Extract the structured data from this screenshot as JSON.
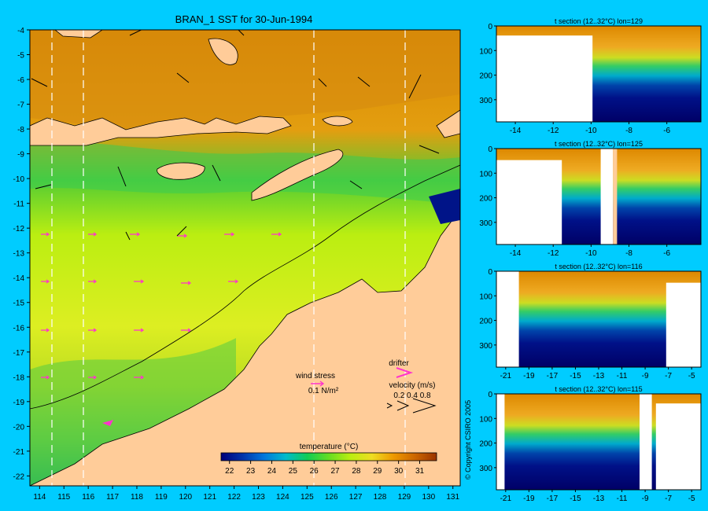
{
  "main_map": {
    "title": "BRAN_1 SST for 30-Jun-1994",
    "x_ticks": [
      "114",
      "115",
      "116",
      "117",
      "118",
      "119",
      "120",
      "121",
      "122",
      "123",
      "124",
      "125",
      "126",
      "127",
      "128",
      "129",
      "130",
      "131"
    ],
    "y_ticks": [
      "-4",
      "-5",
      "-6",
      "-7",
      "-8",
      "-9",
      "-10",
      "-11",
      "-12",
      "-13",
      "-14",
      "-15",
      "-16",
      "-17",
      "-18",
      "-19",
      "-20",
      "-21",
      "-22"
    ],
    "wind_label": "wind stress",
    "wind_value": "0.1 N/m²",
    "drifter_label": "drifter",
    "velocity_label": "velocity (m/s)",
    "velocity_values": "0.2 0.4 0.8",
    "colorbar": {
      "title": "temperature (°C)",
      "ticks": [
        "22",
        "23",
        "24",
        "25",
        "26",
        "27",
        "28",
        "29",
        "30",
        "31"
      ],
      "colors": [
        "#00007A",
        "#0033AA",
        "#0077DD",
        "#00BBCC",
        "#11CC55",
        "#66DD22",
        "#BBEE11",
        "#EEDD22",
        "#EE9900",
        "#CC6600",
        "#993300"
      ]
    },
    "colors": {
      "land": "#FFCC99",
      "background": "#00CCFF",
      "drifter": "#FF33CC"
    }
  },
  "copyright": "© Copyright CSIRO 2005",
  "sections": [
    {
      "title": "t section (12..32°C) lon=129",
      "x_ticks": [
        "-14",
        "-12",
        "-10",
        "-8",
        "-6"
      ],
      "y_ticks": [
        "0",
        "100",
        "200",
        "300"
      ]
    },
    {
      "title": "t section (12..32°C) lon=125",
      "x_ticks": [
        "-14",
        "-12",
        "-10",
        "-8",
        "-6"
      ],
      "y_ticks": [
        "0",
        "100",
        "200",
        "300"
      ]
    },
    {
      "title": "t section (12..32°C) lon=116",
      "x_ticks": [
        "-21",
        "-19",
        "-17",
        "-15",
        "-13",
        "-11",
        "-9",
        "-7",
        "-5"
      ],
      "y_ticks": [
        "0",
        "100",
        "200",
        "300"
      ]
    },
    {
      "title": "t section (12..32°C) lon=115",
      "x_ticks": [
        "-21",
        "-19",
        "-17",
        "-15",
        "-13",
        "-11",
        "-9",
        "-7",
        "-5"
      ],
      "y_ticks": [
        "0",
        "100",
        "200",
        "300"
      ]
    }
  ],
  "chart_data": [
    {
      "type": "heatmap",
      "title": "BRAN_1 SST for 30-Jun-1994",
      "xlim": [
        113.6,
        131.3
      ],
      "ylim": [
        -22.4,
        -4
      ],
      "colorbar_label": "temperature (°C)",
      "colorbar_range": [
        21.6,
        31.8
      ],
      "meridians_shown": [
        114.5,
        115.8,
        125.5,
        129.3
      ]
    },
    {
      "type": "heatmap",
      "title": "t section (12..32°C) lon=129",
      "xlim": [
        -15,
        -4.2
      ],
      "ylim": [
        390,
        0
      ]
    },
    {
      "type": "heatmap",
      "title": "t section (12..32°C) lon=125",
      "xlim": [
        -15,
        -4.2
      ],
      "ylim": [
        390,
        0
      ]
    },
    {
      "type": "heatmap",
      "title": "t section (12..32°C) lon=116",
      "xlim": [
        -21.8,
        -4.2
      ],
      "ylim": [
        390,
        0
      ]
    },
    {
      "type": "heatmap",
      "title": "t section (12..32°C) lon=115",
      "xlim": [
        -21.8,
        -4.2
      ],
      "ylim": [
        390,
        0
      ]
    }
  ]
}
